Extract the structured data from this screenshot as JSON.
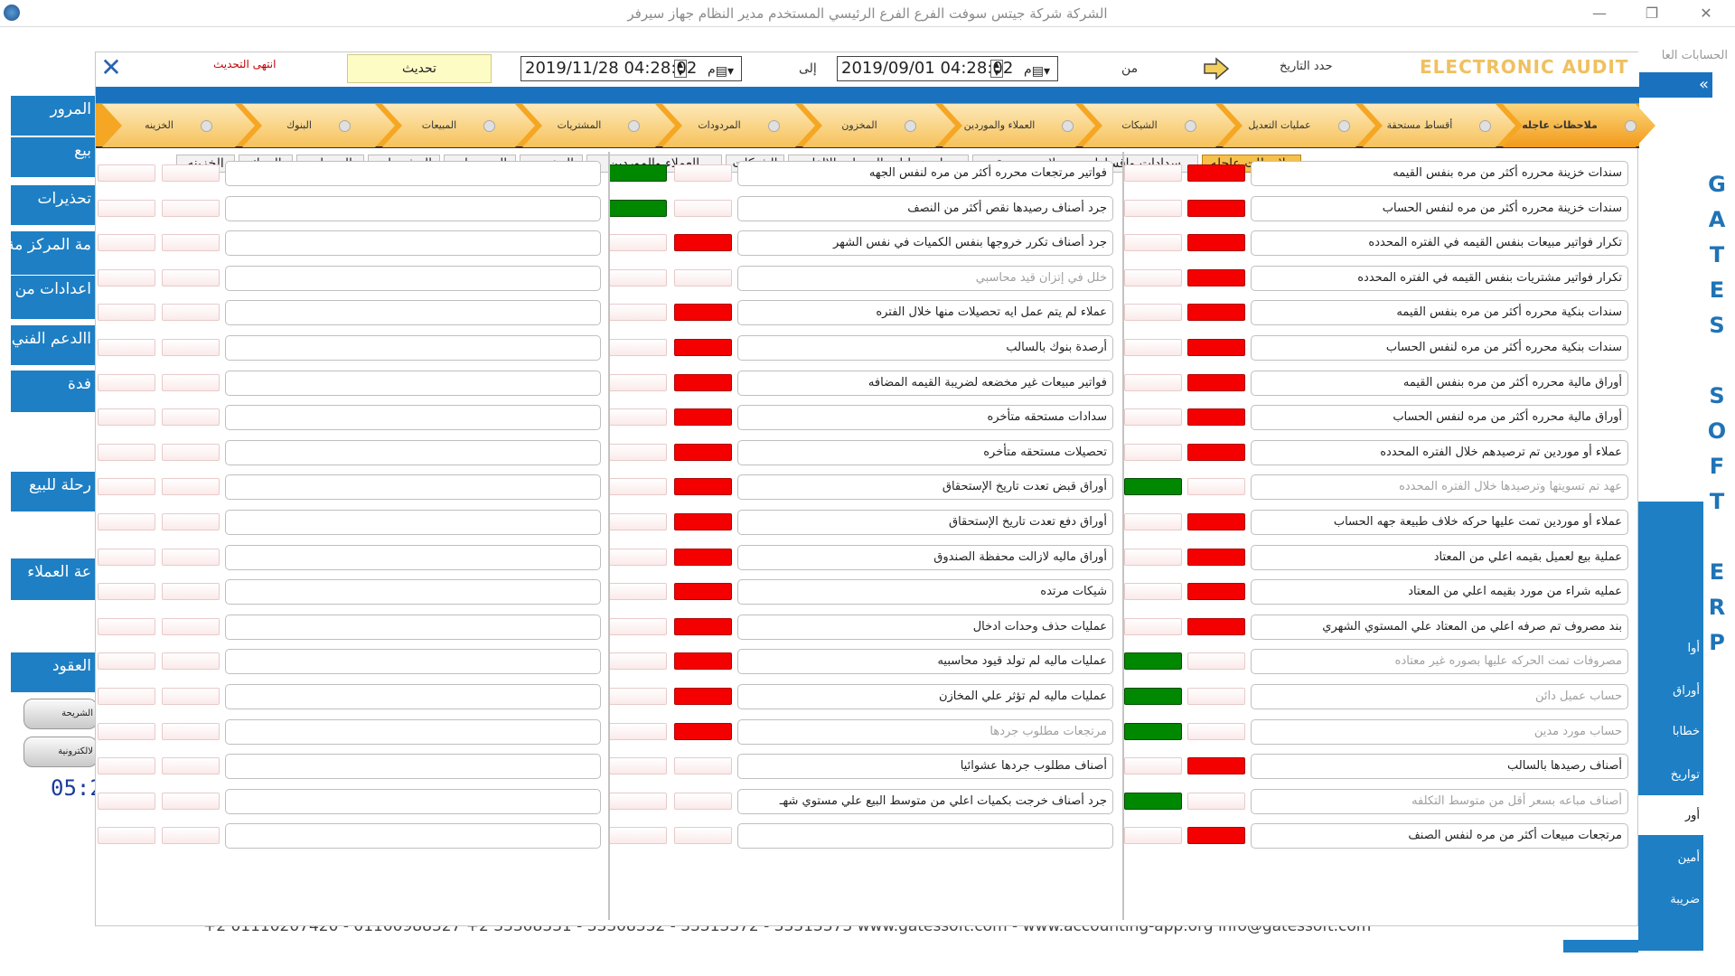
{
  "titlebar": {
    "title": "الشركة شركة جيتس سوفت    الفرع الفرع الرئيسي    المستخدم مدير النظام    جهاز سيرفر",
    "min": "—",
    "max": "❐",
    "close": "✕"
  },
  "background": {
    "left_buttons": [
      "المرور",
      "بيع",
      "تحذيرات",
      "مة المركز مة الدخل",
      "اعدادات من",
      "االدعم الفني",
      "فدة",
      "رحلة للبيع",
      "عة العملاء",
      "العقود"
    ],
    "pills": [
      "الشريحة",
      "لالكترونية"
    ],
    "clock": "05:2",
    "right_top": "الحسابات العا",
    "right_arrow": "«",
    "right_items": [
      "أوا",
      "أوراق",
      "خطابا",
      "تواريخ",
      "أور",
      "أمين",
      "ضريبة"
    ],
    "gates": [
      "G",
      "A",
      "T",
      "E",
      "S",
      "",
      "S",
      "O",
      "F",
      "T",
      "",
      "E",
      "R",
      "P"
    ],
    "footer": "+2 01110207420 - 01100988327    +2 33308331 - 33308332 - 33313372 - 33313373    www.gatessoft.com  -  www.accounting-app.org    info@gatessoft.com"
  },
  "modal": {
    "close_label": "✕",
    "last_update_label": "انتهى التحديث",
    "refresh_label": "تحديث",
    "to_date": "2019/11/28 04:28:02",
    "to_suffix": "م",
    "to_label": "إلى",
    "from_date": "2019/09/01 04:28:02",
    "from_suffix": "م",
    "from_label": "من",
    "period_label": "حدد التاريخ",
    "brand": "ELECTRONIC AUDIT",
    "steps": [
      "ملاحظات عاجله",
      "أقساط مستحقة",
      "عمليات التعديل",
      "الشيكات",
      "العملاء والموردين",
      "المخزون",
      "المردودات",
      "المشتريات",
      "المبيعات",
      "البنوك",
      "الخزينه"
    ],
    "tabs": [
      "ملاحظات عاجله",
      "سدادات واقساط  وتحصيلات مستحقه",
      "بيان عمليات التعديل والإلغاء",
      "الشيكات",
      "العملاء والموردين",
      "المخزون",
      "المردودات",
      "المشتريات",
      "المبيعات",
      "البنوك",
      "الخزينه"
    ],
    "col1": [
      {
        "label": "سندات خزينة محرره أكثر من مره بنفس القيمه",
        "status": "red",
        "dim": false
      },
      {
        "label": "سندات خزينة محرره أكثر من مره لنفس الحساب",
        "status": "red",
        "dim": false
      },
      {
        "label": "تكرار فواتير مبيعات بنفس القيمه في الفتره المحدده",
        "status": "red",
        "dim": false
      },
      {
        "label": "تكرار فواتير مشتريات  بنفس القيمه في الفتره المحدده",
        "status": "red",
        "dim": false
      },
      {
        "label": "سندات بنكية محرره أكثر من مره بنفس القيمه",
        "status": "red",
        "dim": false
      },
      {
        "label": "سندات بنكية محرره أكثر من مره لنفس الحساب",
        "status": "red",
        "dim": false
      },
      {
        "label": "أوراق مالية محرره أكثر من مره بنفس القيمه",
        "status": "red",
        "dim": false
      },
      {
        "label": "أوراق مالية محرره أكثر من مره لنفس الحساب",
        "status": "red",
        "dim": false
      },
      {
        "label": "عملاء أو موردين تم ترصيدهم خلال الفتره المحدده",
        "status": "red",
        "dim": false
      },
      {
        "label": "عهد تم تسويتها وترصيدها خلال الفتره المحدده",
        "status": "green",
        "dim": true
      },
      {
        "label": "عملاء أو موردين تمت عليها حركه خلاف طبيعة جهه الحساب",
        "status": "red",
        "dim": false
      },
      {
        "label": "عملية بيع لعميل بقيمه اعلي من المعتاد",
        "status": "red",
        "dim": false
      },
      {
        "label": "عمليه شراء من مورد بقيمه اعلي من المعتاد",
        "status": "red",
        "dim": false
      },
      {
        "label": "بند مصروف تم صرفه اعلي من المعتاد علي المستوي الشهري",
        "status": "red",
        "dim": false
      },
      {
        "label": "مصروفات تمت الحركه عليها بصوره غير معتاده",
        "status": "green",
        "dim": true
      },
      {
        "label": "حساب عميل دائن",
        "status": "green",
        "dim": true
      },
      {
        "label": "حساب مورد مدين",
        "status": "green",
        "dim": true
      },
      {
        "label": "أصناف رصيدها بالسالب",
        "status": "red",
        "dim": false
      },
      {
        "label": "أصناف مباعه بسعر أقل من متوسط التكلفه",
        "status": "green",
        "dim": true
      },
      {
        "label": "مرتجعات مبيعات أكثر من مره لنفس الصنف",
        "status": "red",
        "dim": false
      }
    ],
    "col2": [
      {
        "label": "فواتير مرتجعات محرره أكثر من مره لنفس الجهه",
        "status": "green",
        "dim": false
      },
      {
        "label": "جرد أصناف رصيدها نقص أكثر من النصف",
        "status": "green",
        "dim": false
      },
      {
        "label": "جرد أصناف تكرر خروجها  بنفس الكميات في نفس الشهر",
        "status": "red",
        "dim": false
      },
      {
        "label": "خلل في إتزان قيد محاسبي",
        "status": "none",
        "dim": true
      },
      {
        "label": "عملاء لم يتم عمل ايه تحصيلات منها خلال الفتره",
        "status": "red",
        "dim": false
      },
      {
        "label": "أرصدة بنوك بالسالب",
        "status": "red",
        "dim": false
      },
      {
        "label": "فواتير مبيعات غير مخضعه لضريبة القيمه المضافه",
        "status": "red",
        "dim": false
      },
      {
        "label": "سدادات مستحقه متأخره",
        "status": "red",
        "dim": false
      },
      {
        "label": "تحصيلات مستحقه متأخره",
        "status": "red",
        "dim": false
      },
      {
        "label": "أوراق قبض تعدت تاريخ الإستحقاق",
        "status": "red",
        "dim": false
      },
      {
        "label": "أوراق دفع تعدت تاريخ الإستحقاق",
        "status": "red",
        "dim": false
      },
      {
        "label": "أوراق ماليه لازالت محفظة الصندوق",
        "status": "red",
        "dim": false
      },
      {
        "label": "شيكات مرتده",
        "status": "red",
        "dim": false
      },
      {
        "label": "عمليات حذف وحدات ادخال",
        "status": "red",
        "dim": false
      },
      {
        "label": "عمليات ماليه لم تولد قيود محاسبيه",
        "status": "red",
        "dim": false
      },
      {
        "label": "عمليات ماليه لم تؤثر علي المخازن",
        "status": "red",
        "dim": false
      },
      {
        "label": "مرتجعات مطلوب جردها",
        "status": "red",
        "dim": true
      },
      {
        "label": "أصناف مطلوب جردها عشوائيا",
        "status": "none",
        "dim": false
      },
      {
        "label": "جرد أصناف خرجت بكميات اعلي من متوسط البيع علي مستوي شهـ",
        "status": "none",
        "dim": false
      },
      {
        "label": "",
        "status": "none",
        "dim": false
      }
    ]
  }
}
